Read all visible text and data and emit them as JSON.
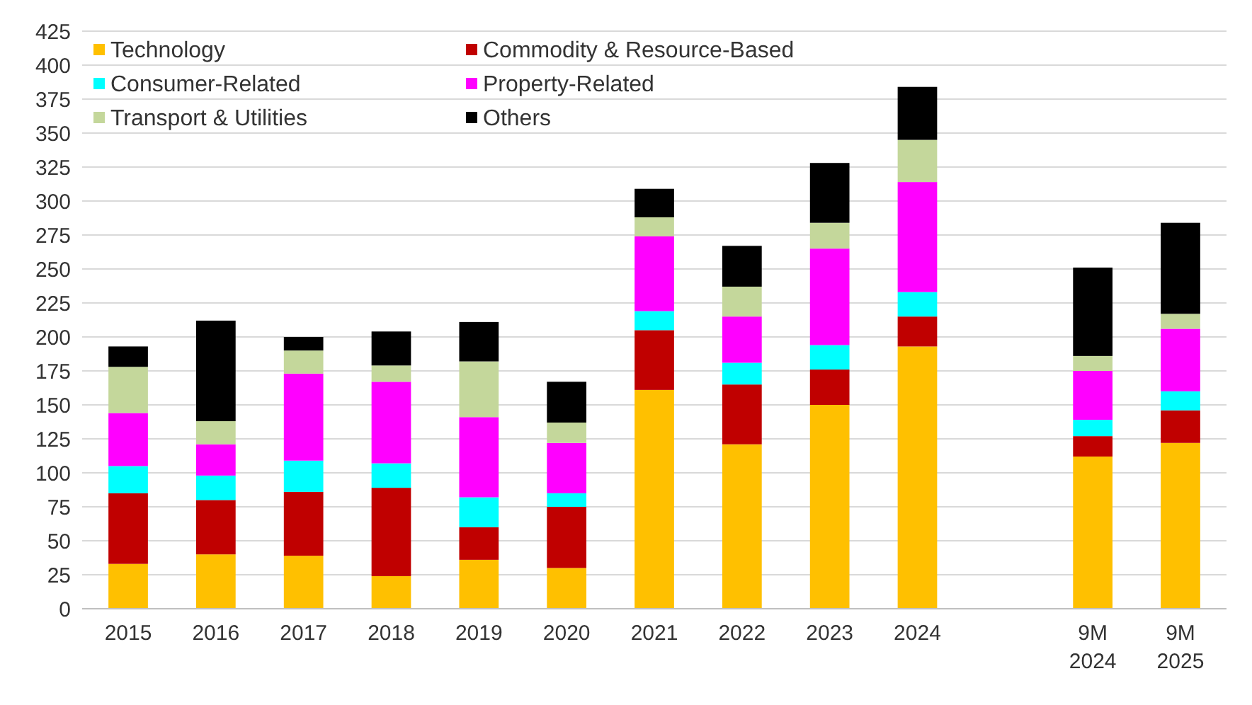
{
  "chart_data": {
    "type": "bar",
    "stacked": true,
    "categories": [
      "2015",
      "2016",
      "2017",
      "2018",
      "2019",
      "2020",
      "2021",
      "2022",
      "2023",
      "2024",
      null,
      "9M 2024",
      "9M 2025"
    ],
    "series": [
      {
        "name": "Technology",
        "color": "#ffc000",
        "values": [
          33,
          40,
          39,
          24,
          36,
          30,
          161,
          121,
          150,
          193,
          null,
          112,
          122
        ]
      },
      {
        "name": "Commodity & Resource-Based",
        "color": "#c00000",
        "values": [
          52,
          40,
          47,
          65,
          24,
          45,
          44,
          44,
          26,
          22,
          null,
          15,
          24
        ]
      },
      {
        "name": "Consumer-Related",
        "color": "#00ffff",
        "values": [
          20,
          18,
          23,
          18,
          22,
          10,
          14,
          16,
          18,
          18,
          null,
          12,
          14
        ]
      },
      {
        "name": "Property-Related",
        "color": "#ff00ff",
        "values": [
          39,
          23,
          64,
          60,
          59,
          37,
          55,
          34,
          71,
          81,
          null,
          36,
          46
        ]
      },
      {
        "name": "Transport & Utilities",
        "color": "#c4d79b",
        "values": [
          34,
          17,
          17,
          12,
          41,
          15,
          14,
          22,
          19,
          31,
          null,
          11,
          11
        ]
      },
      {
        "name": "Others",
        "color": "#000000",
        "values": [
          15,
          74,
          10,
          25,
          29,
          30,
          21,
          30,
          44,
          39,
          null,
          65,
          67
        ]
      }
    ],
    "ylim": [
      0,
      425
    ],
    "yticks": [
      0,
      25,
      50,
      75,
      100,
      125,
      150,
      175,
      200,
      225,
      250,
      275,
      300,
      325,
      350,
      375,
      400,
      425
    ],
    "grid": "y",
    "legend": "top left"
  }
}
